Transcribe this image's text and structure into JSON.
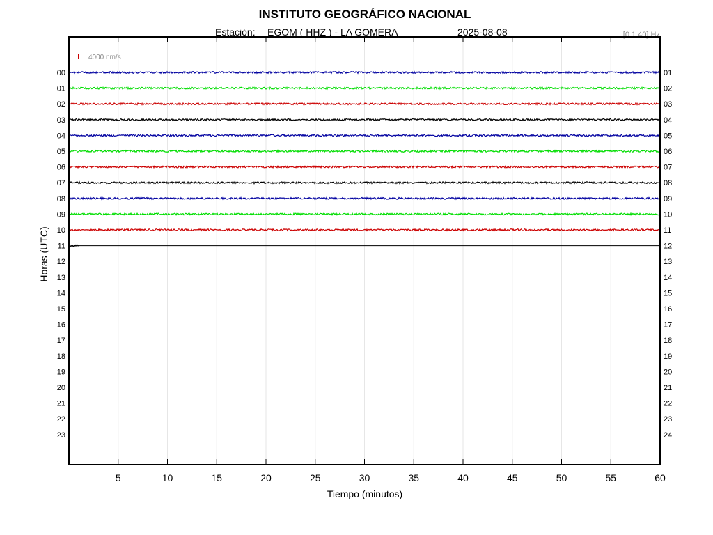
{
  "chart_data": {
    "type": "line",
    "title": "INSTITUTO GEOGRÁFICO NACIONAL",
    "station_prefix": "Estación:",
    "station": "EGOM ( HHZ ) - LA GOMERA",
    "date": "2025-08-08",
    "filter": "[0.1 40] Hz",
    "scale_label": "4000 nm/s",
    "xlabel": "Tiempo (minutos)",
    "ylabel": "Horas (UTC)",
    "xlim": [
      0,
      60
    ],
    "x_ticks": [
      "5",
      "10",
      "15",
      "20",
      "25",
      "30",
      "35",
      "40",
      "45",
      "50",
      "55",
      "60"
    ],
    "left_labels": [
      "00",
      "01",
      "02",
      "03",
      "04",
      "05",
      "06",
      "07",
      "08",
      "09",
      "10",
      "11",
      "12",
      "13",
      "14",
      "15",
      "16",
      "17",
      "18",
      "19",
      "20",
      "21",
      "22",
      "23"
    ],
    "right_labels": [
      "01",
      "02",
      "03",
      "04",
      "05",
      "06",
      "07",
      "08",
      "09",
      "10",
      "11",
      "12",
      "13",
      "14",
      "15",
      "16",
      "17",
      "18",
      "19",
      "20",
      "21",
      "22",
      "23",
      "24"
    ],
    "grid": true,
    "series": [
      {
        "hour": "00",
        "color": "#0000a0",
        "x_end": 60
      },
      {
        "hour": "01",
        "color": "#00dd00",
        "x_end": 60
      },
      {
        "hour": "02",
        "color": "#cc0000",
        "x_end": 60
      },
      {
        "hour": "03",
        "color": "#000000",
        "x_end": 60
      },
      {
        "hour": "04",
        "color": "#0000a0",
        "x_end": 60
      },
      {
        "hour": "05",
        "color": "#00dd00",
        "x_end": 60
      },
      {
        "hour": "06",
        "color": "#cc0000",
        "x_end": 60
      },
      {
        "hour": "07",
        "color": "#000000",
        "x_end": 60
      },
      {
        "hour": "08",
        "color": "#0000a0",
        "x_end": 60
      },
      {
        "hour": "09",
        "color": "#00dd00",
        "x_end": 60
      },
      {
        "hour": "10",
        "color": "#cc0000",
        "x_end": 60
      },
      {
        "hour": "11",
        "color": "#000000",
        "x_end": 1
      }
    ]
  },
  "colors": {
    "scale_bar": "#cc0000",
    "filter_text": "#888888",
    "grid": "#e6e6e6",
    "flat_line": "#000000"
  }
}
